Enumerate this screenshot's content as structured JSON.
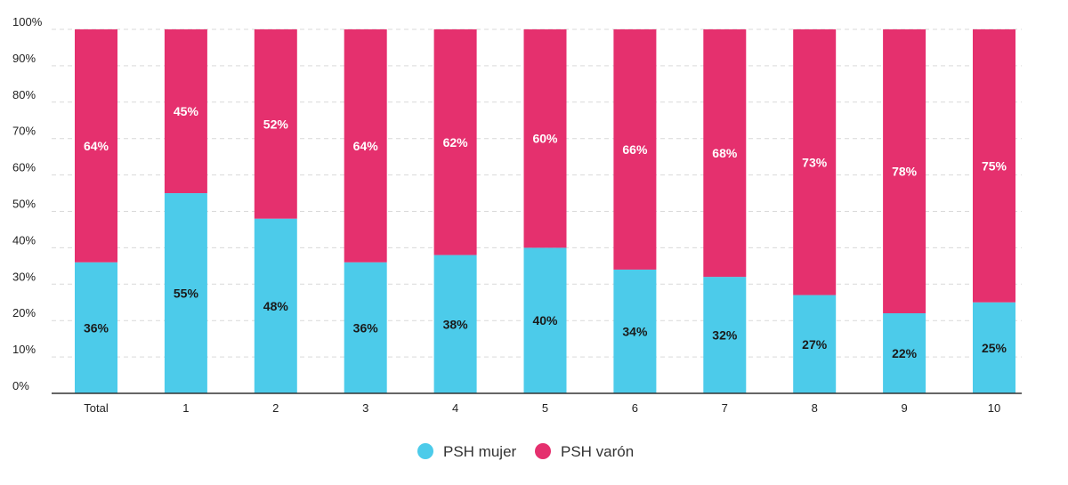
{
  "chart_data": {
    "type": "bar",
    "stacked": true,
    "categories": [
      "Total",
      "1",
      "2",
      "3",
      "4",
      "5",
      "6",
      "7",
      "8",
      "9",
      "10"
    ],
    "series": [
      {
        "name": "PSH mujer",
        "color": "#4ccbea",
        "label_color": "#1a1a1a",
        "values": [
          36,
          55,
          48,
          36,
          38,
          40,
          34,
          32,
          27,
          22,
          25
        ],
        "labels": [
          "36%",
          "55%",
          "48%",
          "36%",
          "38%",
          "40%",
          "34%",
          "32%",
          "27%",
          "22%",
          "25%"
        ]
      },
      {
        "name": "PSH varón",
        "color": "#e5306e",
        "label_color": "#ffffff",
        "values": [
          64,
          45,
          52,
          64,
          62,
          60,
          66,
          68,
          73,
          78,
          75
        ],
        "labels": [
          "64%",
          "45%",
          "52%",
          "64%",
          "62%",
          "60%",
          "66%",
          "68%",
          "73%",
          "78%",
          "75%"
        ]
      }
    ],
    "y_ticks": [
      "0%",
      "10%",
      "20%",
      "30%",
      "40%",
      "50%",
      "60%",
      "70%",
      "80%",
      "90%",
      "100%"
    ],
    "ylim": [
      0,
      100
    ],
    "grid": true,
    "legend_position": "bottom-center",
    "title": "",
    "xlabel": "",
    "ylabel": ""
  }
}
